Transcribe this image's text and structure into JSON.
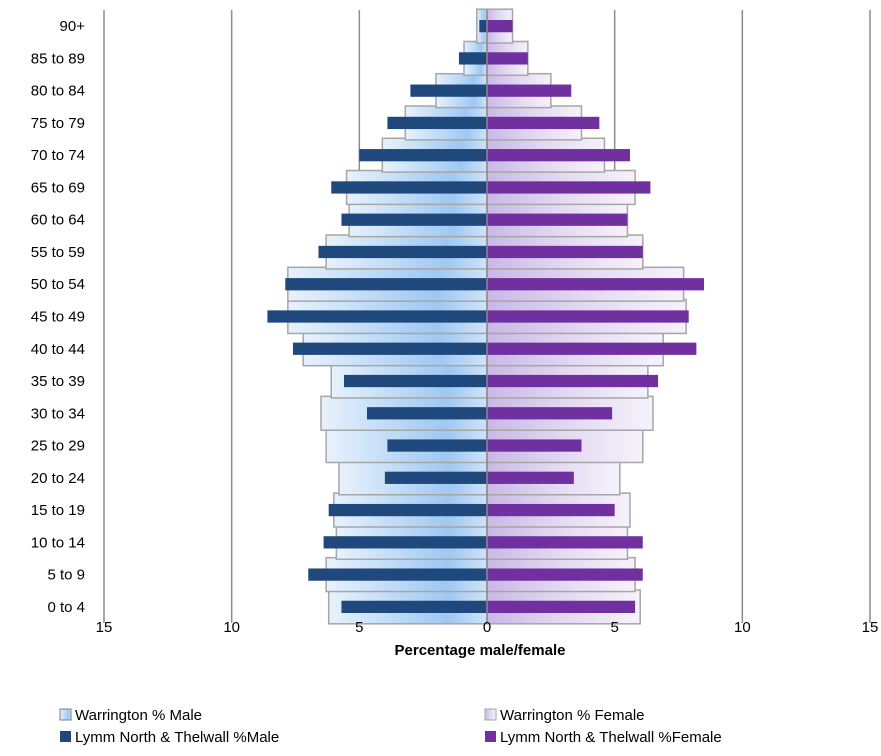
{
  "chart_data": {
    "type": "bar",
    "orientation": "horizontal",
    "subtype": "population-pyramid",
    "title": "",
    "xlabel": "Percentage male/female",
    "ylabel": "",
    "xlim": [
      -15,
      15
    ],
    "xticks": [
      -15,
      -10,
      -5,
      0,
      5,
      10,
      15
    ],
    "xtick_labels": [
      "15",
      "10",
      "5",
      "0",
      "5",
      "10",
      "15"
    ],
    "grid": "vertical",
    "legend_position": "bottom",
    "categories": [
      "0 to 4",
      "5 to 9",
      "10 to 14",
      "15 to 19",
      "20 to 24",
      "25 to 29",
      "30 to 34",
      "35 to 39",
      "40 to 44",
      "45 to 49",
      "50 to 54",
      "55 to 59",
      "60 to 64",
      "65 to 69",
      "70 to 74",
      "75 to 79",
      "80 to 84",
      "85 to 89",
      "90+"
    ],
    "series": [
      {
        "name": "Warrington % Male",
        "side": "left",
        "style": "wide",
        "color": "#9ec8f2",
        "values": [
          6.2,
          6.3,
          5.9,
          6.0,
          5.8,
          6.3,
          6.5,
          6.1,
          7.2,
          7.8,
          7.8,
          6.3,
          5.4,
          5.5,
          4.1,
          3.2,
          2.0,
          0.9,
          0.4
        ]
      },
      {
        "name": "Warrington % Female",
        "side": "right",
        "style": "wide",
        "color": "#d7c9ec",
        "values": [
          6.0,
          5.8,
          5.5,
          5.6,
          5.2,
          6.1,
          6.5,
          6.3,
          6.9,
          7.8,
          7.7,
          6.1,
          5.5,
          5.8,
          4.6,
          3.7,
          2.5,
          1.6,
          1.0
        ]
      },
      {
        "name": "Lymm North & Thelwall %Male",
        "side": "left",
        "style": "narrow",
        "color": "#1f497d",
        "values": [
          5.7,
          7.0,
          6.4,
          6.2,
          4.0,
          3.9,
          4.7,
          5.6,
          7.6,
          8.6,
          7.9,
          6.6,
          5.7,
          6.1,
          5.0,
          3.9,
          3.0,
          1.1,
          0.3
        ]
      },
      {
        "name": "Lymm North & Thelwall %Female",
        "side": "right",
        "style": "narrow",
        "color": "#7030a0",
        "values": [
          5.8,
          6.1,
          6.1,
          5.0,
          3.4,
          3.7,
          4.9,
          6.7,
          8.2,
          7.9,
          8.5,
          6.1,
          5.5,
          6.4,
          5.6,
          4.4,
          3.3,
          1.6,
          1.0
        ]
      }
    ]
  }
}
